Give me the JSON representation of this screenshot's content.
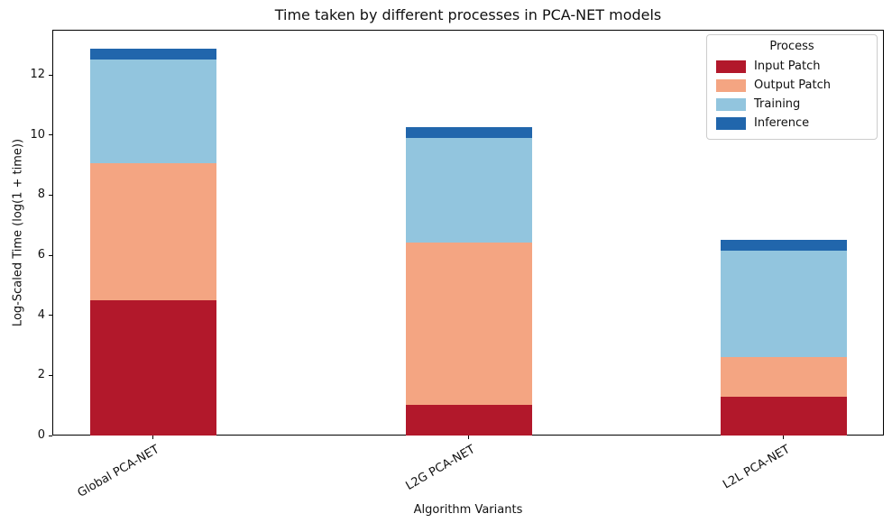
{
  "chart_data": {
    "type": "bar",
    "stacked": true,
    "title": "Time taken by different processes in PCA-NET models",
    "xlabel": "Algorithm Variants",
    "ylabel": "Log-Scaled Time (log(1 + time))",
    "categories": [
      "Global PCA-NET",
      "L2G PCA-NET",
      "L2L PCA-NET"
    ],
    "series": [
      {
        "name": "Input Patch",
        "color": "#b2182b",
        "values": [
          4.51,
          1.01,
          1.28
        ]
      },
      {
        "name": "Output Patch",
        "color": "#f4a582",
        "values": [
          4.54,
          5.42,
          1.32
        ]
      },
      {
        "name": "Training",
        "color": "#92c5de",
        "values": [
          3.45,
          3.48,
          3.55
        ]
      },
      {
        "name": "Inference",
        "color": "#2166ac",
        "values": [
          0.38,
          0.35,
          0.37
        ]
      }
    ],
    "totals": [
      12.88,
      10.26,
      6.52
    ],
    "ylim": [
      0,
      13.5
    ],
    "y_ticks": [
      0,
      2,
      4,
      6,
      8,
      10,
      12
    ],
    "x_tick_rotation": 30,
    "grid": false,
    "legend_title": "Process",
    "legend_position": "upper right"
  }
}
